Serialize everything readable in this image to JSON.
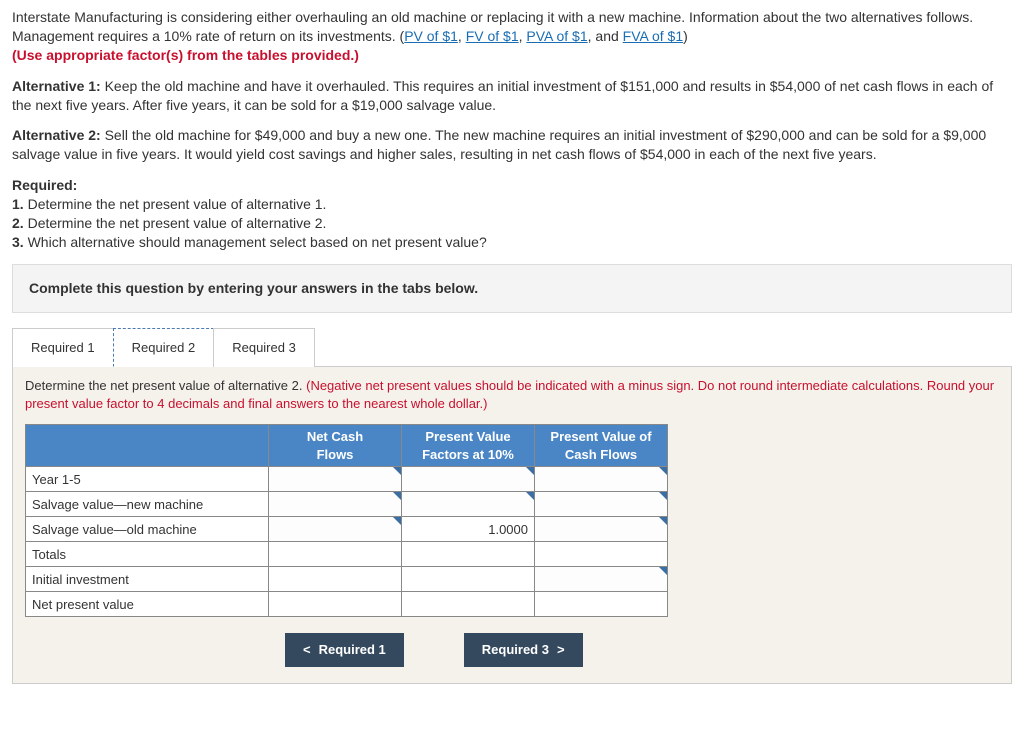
{
  "intro": {
    "lead": "Interstate Manufacturing is considering either overhauling an old machine or replacing it with a new machine. Information about the two alternatives follows. Management requires a 10% rate of return on its investments. (",
    "links": [
      "PV of $1",
      "FV of $1",
      "PVA of $1",
      "FVA of $1"
    ],
    "after_links": ")",
    "red_line": "(Use appropriate factor(s) from the tables provided.)"
  },
  "alt1": {
    "label": "Alternative 1:",
    "text": " Keep the old machine and have it overhauled. This requires an initial investment of $151,000 and results in $54,000 of net cash flows in each of the next five years. After five years, it can be sold for a $19,000 salvage value."
  },
  "alt2": {
    "label": "Alternative 2:",
    "text": " Sell the old machine for $49,000 and buy a new one. The new machine requires an initial investment of $290,000 and can be sold for a $9,000 salvage value in five years. It would yield cost savings and higher sales, resulting in net cash flows of $54,000 in each of the next five years."
  },
  "required": {
    "heading": "Required:",
    "items": [
      "1. Determine the net present value of alternative 1.",
      "2. Determine the net present value of alternative 2.",
      "3. Which alternative should management select based on net present value?"
    ]
  },
  "panel": "Complete this question by entering your answers in the tabs below.",
  "tabs": {
    "t1": "Required 1",
    "t2": "Required 2",
    "t3": "Required 3"
  },
  "tabbody": {
    "lead": "Determine the net present value of alternative 2. ",
    "hint": "(Negative net present values should be indicated with a minus sign. Do not round intermediate calculations. Round your present value factor to 4 decimals and final answers to the nearest whole dollar.)"
  },
  "table": {
    "headers": {
      "c1": "",
      "c2": "Net Cash\nFlows",
      "c3": "Present Value\nFactors at 10%",
      "c4": "Present Value of\nCash Flows"
    },
    "rows": [
      {
        "label": "Year 1-5",
        "ncf": "",
        "pvf": "",
        "pvcf": "",
        "edit_ncf": true,
        "edit_pvf": true,
        "edit_pvcf": true
      },
      {
        "label": "Salvage value—new machine",
        "ncf": "",
        "pvf": "",
        "pvcf": "",
        "edit_ncf": true,
        "edit_pvf": true,
        "edit_pvcf": true
      },
      {
        "label": "Salvage value—old machine",
        "ncf": "",
        "pvf": "1.0000",
        "pvcf": "",
        "edit_ncf": true,
        "edit_pvf": false,
        "edit_pvcf": true
      },
      {
        "label": "Totals",
        "ncf": "",
        "pvf": "",
        "pvcf": "",
        "edit_ncf": false,
        "edit_pvf": false,
        "edit_pvcf": false
      },
      {
        "label": "Initial investment",
        "ncf": "",
        "pvf": "",
        "pvcf": "",
        "edit_ncf": false,
        "edit_pvf": false,
        "edit_pvcf": true
      },
      {
        "label": "Net present value",
        "ncf": "",
        "pvf": "",
        "pvcf": "",
        "edit_ncf": false,
        "edit_pvf": false,
        "edit_pvcf": false
      }
    ]
  },
  "nav": {
    "prev": "Required 1",
    "next": "Required 3"
  },
  "colors": {
    "header_bg": "#4a86c5",
    "nav_bg": "#34495e",
    "red": "#c8102e",
    "link": "#1a6db3",
    "panel_bg": "#f4f4f4",
    "tabbody_bg": "#f5f2ec"
  }
}
